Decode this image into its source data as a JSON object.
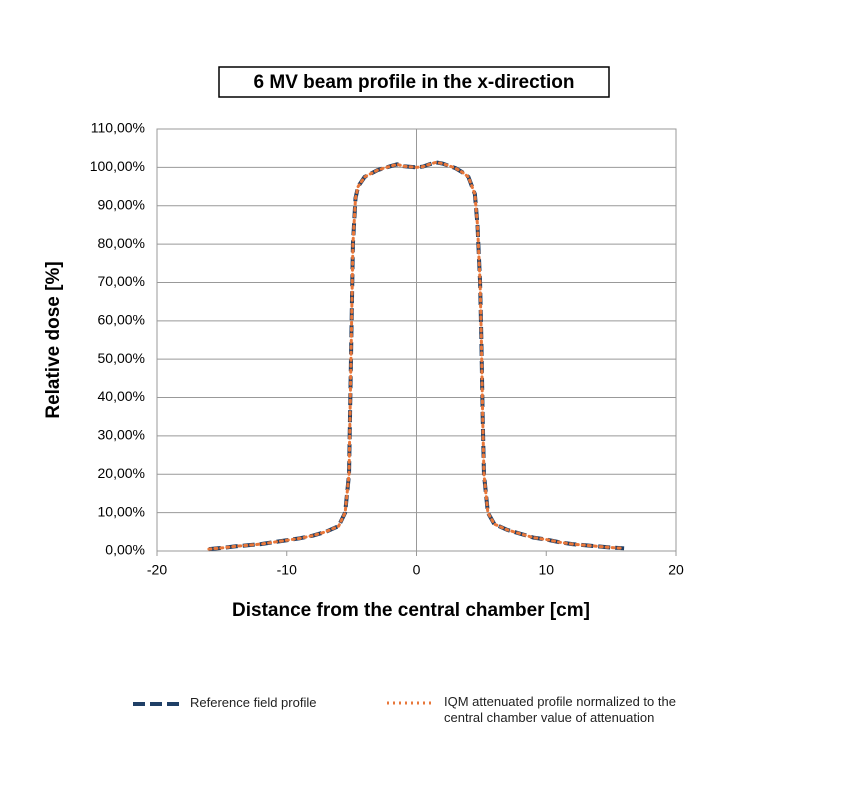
{
  "chart_data": {
    "type": "line",
    "title": "6 MV beam profile in the x-direction",
    "x_label": "Distance from the central chamber [cm]",
    "y_label": "Relative dose [%]",
    "x": [
      -16,
      -15,
      -14,
      -13,
      -12,
      -11,
      -10,
      -9,
      -8,
      -7,
      -6,
      -5.5,
      -5.2,
      -5.1,
      -5,
      -4.9,
      -4.7,
      -4.5,
      -4,
      -3,
      -2,
      -1.5,
      -1,
      0,
      0.5,
      1,
      1.5,
      2,
      3,
      3.5,
      4,
      4.5,
      4.7,
      4.9,
      5,
      5.1,
      5.2,
      5.5,
      6,
      7,
      8,
      9,
      10,
      11,
      12,
      13,
      14,
      15,
      16
    ],
    "series": [
      {
        "name": "Reference field profile",
        "color": "#1f3f66",
        "style": "dashed",
        "values": [
          0.5,
          0.8,
          1.2,
          1.5,
          1.8,
          2.3,
          2.8,
          3.3,
          4,
          5,
          6.5,
          10,
          20,
          40,
          60,
          80,
          92,
          95,
          97.5,
          99.3,
          100.3,
          100.8,
          100.3,
          100,
          100.2,
          100.8,
          101.3,
          101,
          99.8,
          98.8,
          97.5,
          93,
          85,
          70,
          55,
          35,
          20,
          10,
          7,
          5.5,
          4.5,
          3.5,
          3,
          2.3,
          1.8,
          1.5,
          1.2,
          0.9,
          0.7
        ]
      },
      {
        "name": "IQM attenuated profile normalized to the central chamber value of attenuation",
        "color": "#e8773a",
        "style": "dotted",
        "values": [
          0.5,
          0.8,
          1.2,
          1.5,
          1.8,
          2.3,
          2.8,
          3.3,
          4,
          5,
          6.5,
          10,
          20,
          40,
          60,
          80,
          92,
          95,
          97.5,
          99.3,
          100.3,
          100.8,
          100.3,
          100,
          100.2,
          100.8,
          101.3,
          101,
          99.8,
          98.8,
          97.5,
          93,
          85,
          70,
          55,
          35,
          20,
          10,
          7,
          5.5,
          4.5,
          3.5,
          3,
          2.3,
          1.8,
          1.5,
          1.2,
          0.9,
          0.7
        ]
      }
    ],
    "xlim": [
      -20,
      20
    ],
    "xticks": [
      -20,
      -10,
      0,
      10,
      20
    ],
    "ylim": [
      0,
      110
    ],
    "yticks": [
      {
        "value": 0,
        "label": "0,00%"
      },
      {
        "value": 10,
        "label": "10,00%"
      },
      {
        "value": 20,
        "label": "20,00%"
      },
      {
        "value": 30,
        "label": "30,00%"
      },
      {
        "value": 40,
        "label": "40,00%"
      },
      {
        "value": 50,
        "label": "50,00%"
      },
      {
        "value": 60,
        "label": "60,00%"
      },
      {
        "value": 70,
        "label": "70,00%"
      },
      {
        "value": 80,
        "label": "80,00%"
      },
      {
        "value": 90,
        "label": "90,00%"
      },
      {
        "value": 100,
        "label": "100,00%"
      },
      {
        "value": 110,
        "label": "110,00%"
      }
    ],
    "grid": true,
    "legend": "bottom"
  }
}
